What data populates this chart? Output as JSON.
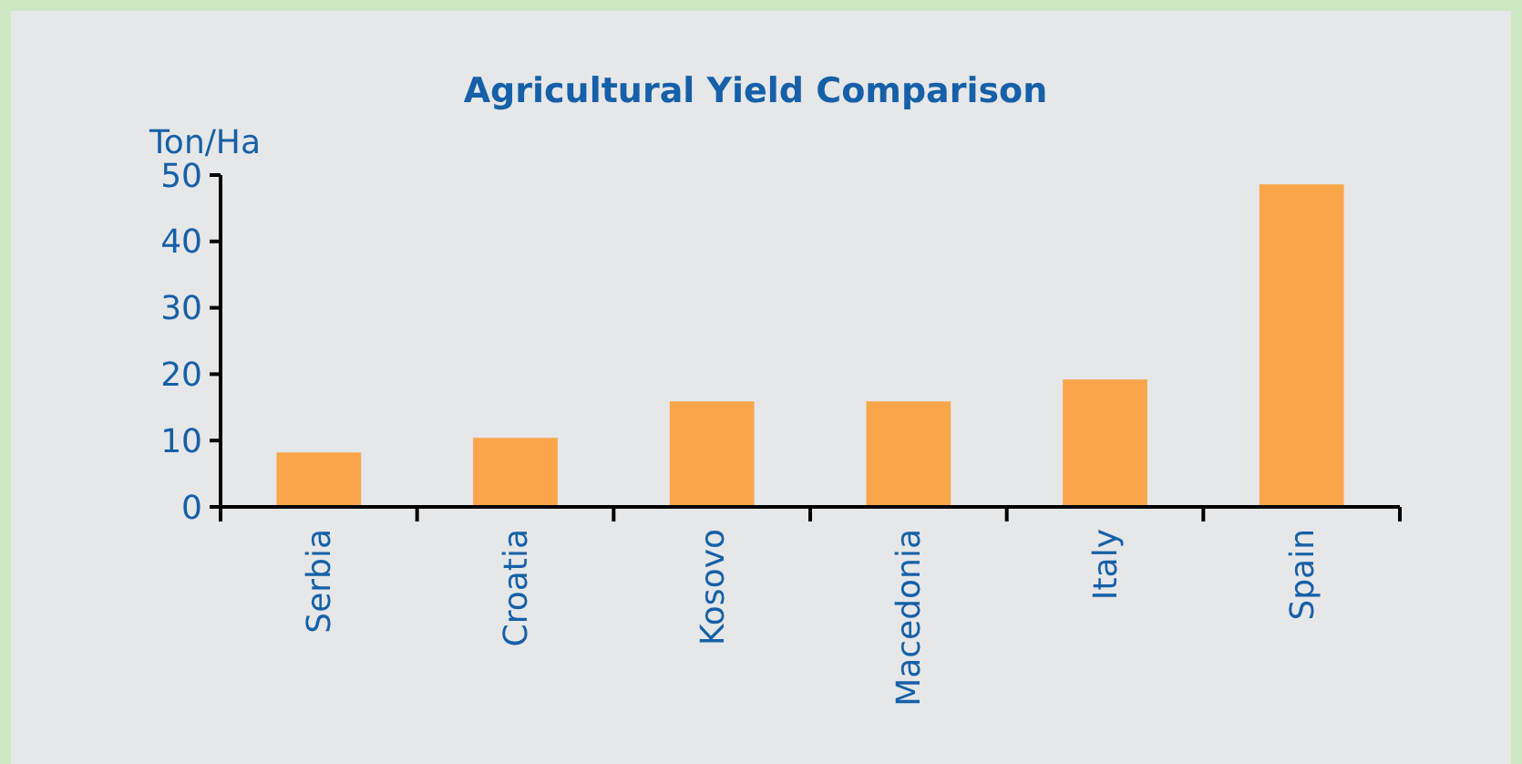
{
  "chart_data": {
    "type": "bar",
    "title": "Agricultural Yield Comparison",
    "ylabel": "Ton/Ha",
    "categories": [
      "Serbia",
      "Croatia",
      "Kosovo",
      "Macedonia",
      "Italy",
      "Spain"
    ],
    "values": [
      8.2,
      10.4,
      15.9,
      15.9,
      19.2,
      48.6
    ],
    "color": "#f9a64b",
    "ylim": [
      0,
      50
    ],
    "yticks": [
      0,
      10,
      20,
      30,
      40,
      50
    ],
    "grid": false
  }
}
